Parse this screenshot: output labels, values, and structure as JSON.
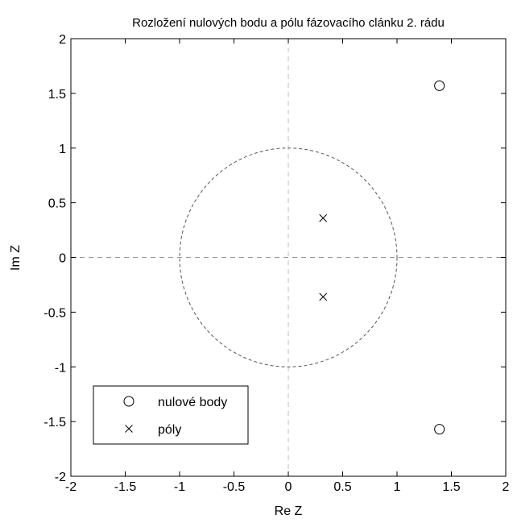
{
  "chart_data": {
    "type": "scatter",
    "title": "Rozložení nulových bodu a pólu fázovacího clánku 2. rádu",
    "xlabel": "Re Z",
    "ylabel": "Im Z",
    "xlim": [
      -2,
      2
    ],
    "ylim": [
      -2,
      2
    ],
    "xticks": [
      "-2",
      "-1.5",
      "-1",
      "-0.5",
      "0",
      "0.5",
      "1",
      "1.5",
      "2"
    ],
    "yticks": [
      "-2",
      "-1.5",
      "-1",
      "-0.5",
      "0",
      "0.5",
      "1",
      "1.5",
      "2"
    ],
    "grid": false,
    "unit_circle": true,
    "axes_lines": true,
    "legend_position": "bottom-left",
    "series": [
      {
        "name": "nulové body",
        "marker": "circle",
        "points": [
          {
            "x": 1.39,
            "y": 1.57
          },
          {
            "x": 1.39,
            "y": -1.57
          }
        ]
      },
      {
        "name": "póly",
        "marker": "cross",
        "points": [
          {
            "x": 0.32,
            "y": 0.36
          },
          {
            "x": 0.32,
            "y": -0.36
          }
        ]
      }
    ]
  }
}
